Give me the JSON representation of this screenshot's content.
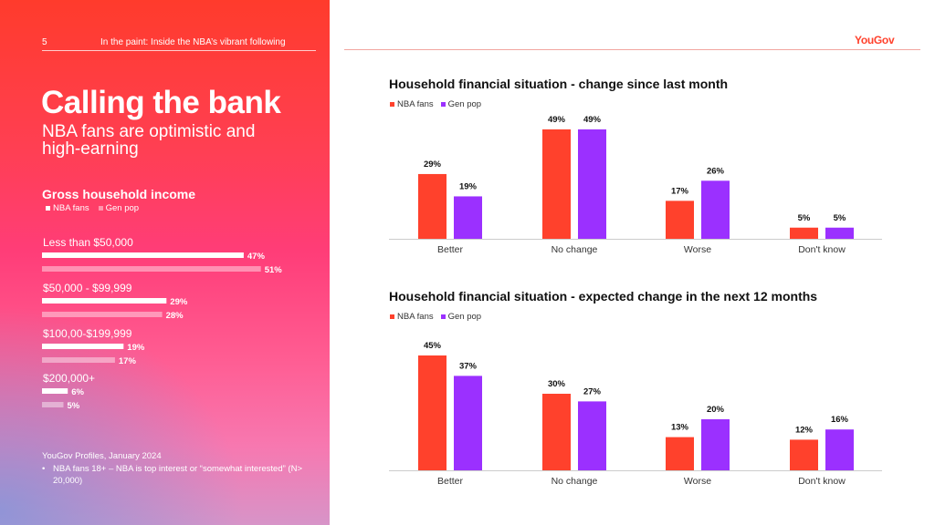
{
  "colors": {
    "nba": "#ff412c",
    "gen": "#9b30ff",
    "axis": "#cccccc",
    "accent": "#ff412c"
  },
  "header": {
    "page_number": "5",
    "title": "In the paint: Inside the NBA’s vibrant following",
    "logo": "YouGov"
  },
  "left": {
    "headline": "Calling the bank",
    "subhead": "NBA fans are optimistic and high-earning",
    "income_title": "Gross household income",
    "legend": {
      "nba": "NBA fans",
      "gen": "Gen pop"
    },
    "source": "YouGov Profiles, January 2024",
    "note": "NBA fans 18+ – NBA is top interest or “somewhat interested” (N> 20,000)"
  },
  "chart_data": [
    {
      "type": "bar",
      "orientation": "horizontal",
      "title": "Gross household income",
      "categories": [
        "Less than $50,000",
        "$50,000 - $99,999",
        "$100,00-$199,999",
        "$200,000+"
      ],
      "series": [
        {
          "name": "NBA fans",
          "values": [
            47,
            29,
            19,
            6
          ]
        },
        {
          "name": "Gen pop",
          "values": [
            51,
            28,
            17,
            5
          ]
        }
      ],
      "unit": "%"
    },
    {
      "type": "bar",
      "title": "Household financial situation - change since last month",
      "legend": [
        "NBA fans",
        "Gen pop"
      ],
      "categories": [
        "Better",
        "No change",
        "Worse",
        "Don't know"
      ],
      "series": [
        {
          "name": "NBA fans",
          "values": [
            29,
            49,
            17,
            5
          ]
        },
        {
          "name": "Gen pop",
          "values": [
            19,
            49,
            26,
            5
          ]
        }
      ],
      "unit": "%"
    },
    {
      "type": "bar",
      "title": "Household financial situation - expected change in the next 12 months",
      "legend": [
        "NBA fans",
        "Gen pop"
      ],
      "categories": [
        "Better",
        "No change",
        "Worse",
        "Don't know"
      ],
      "series": [
        {
          "name": "NBA fans",
          "values": [
            45,
            30,
            13,
            12
          ]
        },
        {
          "name": "Gen pop",
          "values": [
            37,
            27,
            20,
            16
          ]
        }
      ],
      "unit": "%"
    }
  ]
}
